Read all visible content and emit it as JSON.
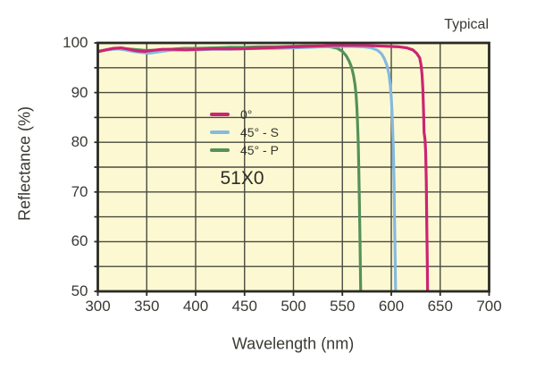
{
  "chart_data": {
    "type": "line",
    "title": "",
    "corner_label": "Typical",
    "annotation": "51X0",
    "xlabel": "Wavelength (nm)",
    "ylabel": "Reflectance (%)",
    "xlim": [
      300,
      700
    ],
    "ylim": [
      50,
      100
    ],
    "xticks": [
      300,
      350,
      400,
      450,
      500,
      550,
      600,
      650,
      700
    ],
    "yticks": [
      50,
      60,
      70,
      80,
      90,
      100
    ],
    "x_grid_step": 50,
    "y_grid_step": 5,
    "grid": "on",
    "legend_position": "center-left inside plot",
    "colors": {
      "plot_bg": "#fcf9d2",
      "grid": "#4a4a40",
      "border": "#2b2b24",
      "text": "#3a3a34"
    },
    "series": [
      {
        "name": "0°",
        "color": "#cd2471",
        "points": [
          [
            300,
            98.2
          ],
          [
            308,
            98.6
          ],
          [
            316,
            98.9
          ],
          [
            324,
            99.0
          ],
          [
            332,
            98.7
          ],
          [
            340,
            98.4
          ],
          [
            348,
            98.3
          ],
          [
            356,
            98.5
          ],
          [
            366,
            98.7
          ],
          [
            378,
            98.7
          ],
          [
            390,
            98.6
          ],
          [
            402,
            98.7
          ],
          [
            416,
            98.8
          ],
          [
            430,
            98.8
          ],
          [
            444,
            98.8
          ],
          [
            458,
            98.9
          ],
          [
            472,
            99.0
          ],
          [
            486,
            99.1
          ],
          [
            500,
            99.2
          ],
          [
            514,
            99.3
          ],
          [
            528,
            99.4
          ],
          [
            542,
            99.5
          ],
          [
            556,
            99.5
          ],
          [
            570,
            99.5
          ],
          [
            584,
            99.4
          ],
          [
            598,
            99.3
          ],
          [
            608,
            99.2
          ],
          [
            616,
            99.0
          ],
          [
            622,
            98.6
          ],
          [
            626,
            97.9
          ],
          [
            629,
            97.0
          ],
          [
            630.5,
            95.5
          ],
          [
            631.5,
            93.5
          ],
          [
            632.3,
            90.5
          ],
          [
            632.8,
            87.5
          ],
          [
            633.2,
            84.5
          ],
          [
            633.5,
            82
          ],
          [
            634.5,
            80.5
          ],
          [
            635.2,
            78
          ],
          [
            635.8,
            72
          ],
          [
            636.3,
            64
          ],
          [
            636.8,
            56
          ],
          [
            637.2,
            49
          ],
          [
            637.5,
            44
          ]
        ]
      },
      {
        "name": "45° - S",
        "color": "#85b9e0",
        "points": [
          [
            300,
            98.4
          ],
          [
            310,
            98.6
          ],
          [
            320,
            98.8
          ],
          [
            328,
            98.6
          ],
          [
            336,
            98.3
          ],
          [
            344,
            98.1
          ],
          [
            352,
            97.9
          ],
          [
            362,
            98.2
          ],
          [
            374,
            98.5
          ],
          [
            388,
            98.6
          ],
          [
            402,
            98.6
          ],
          [
            418,
            98.7
          ],
          [
            434,
            98.7
          ],
          [
            450,
            98.8
          ],
          [
            466,
            98.9
          ],
          [
            482,
            98.9
          ],
          [
            498,
            99.0
          ],
          [
            514,
            99.1
          ],
          [
            530,
            99.2
          ],
          [
            546,
            99.3
          ],
          [
            560,
            99.3
          ],
          [
            572,
            99.2
          ],
          [
            580,
            99.0
          ],
          [
            586,
            98.5
          ],
          [
            590,
            97.8
          ],
          [
            593,
            96.8
          ],
          [
            595.5,
            95.5
          ],
          [
            597.5,
            93.8
          ],
          [
            599,
            91.5
          ],
          [
            600,
            89
          ],
          [
            600.8,
            86
          ],
          [
            601.5,
            82.5
          ],
          [
            602.2,
            78
          ],
          [
            602.8,
            72
          ],
          [
            603.4,
            64
          ],
          [
            604,
            56
          ],
          [
            604.5,
            49
          ],
          [
            605,
            44
          ]
        ]
      },
      {
        "name": "45° - P",
        "color": "#55915a",
        "points": [
          [
            300,
            98.3
          ],
          [
            312,
            98.7
          ],
          [
            324,
            98.9
          ],
          [
            336,
            98.7
          ],
          [
            348,
            98.5
          ],
          [
            360,
            98.5
          ],
          [
            374,
            98.7
          ],
          [
            388,
            98.9
          ],
          [
            402,
            98.9
          ],
          [
            418,
            99.0
          ],
          [
            434,
            99.1
          ],
          [
            450,
            99.1
          ],
          [
            466,
            99.2
          ],
          [
            482,
            99.2
          ],
          [
            498,
            99.3
          ],
          [
            512,
            99.4
          ],
          [
            526,
            99.4
          ],
          [
            538,
            99.2
          ],
          [
            545,
            98.9
          ],
          [
            550,
            98.3
          ],
          [
            554,
            97.4
          ],
          [
            557,
            96.3
          ],
          [
            559.5,
            95.0
          ],
          [
            561.5,
            93.4
          ],
          [
            563,
            91.5
          ],
          [
            564,
            89.5
          ],
          [
            564.8,
            87
          ],
          [
            565.5,
            84
          ],
          [
            566.2,
            80
          ],
          [
            566.8,
            75
          ],
          [
            567.4,
            68
          ],
          [
            568,
            60
          ],
          [
            568.6,
            52
          ],
          [
            569,
            46
          ]
        ]
      }
    ]
  }
}
